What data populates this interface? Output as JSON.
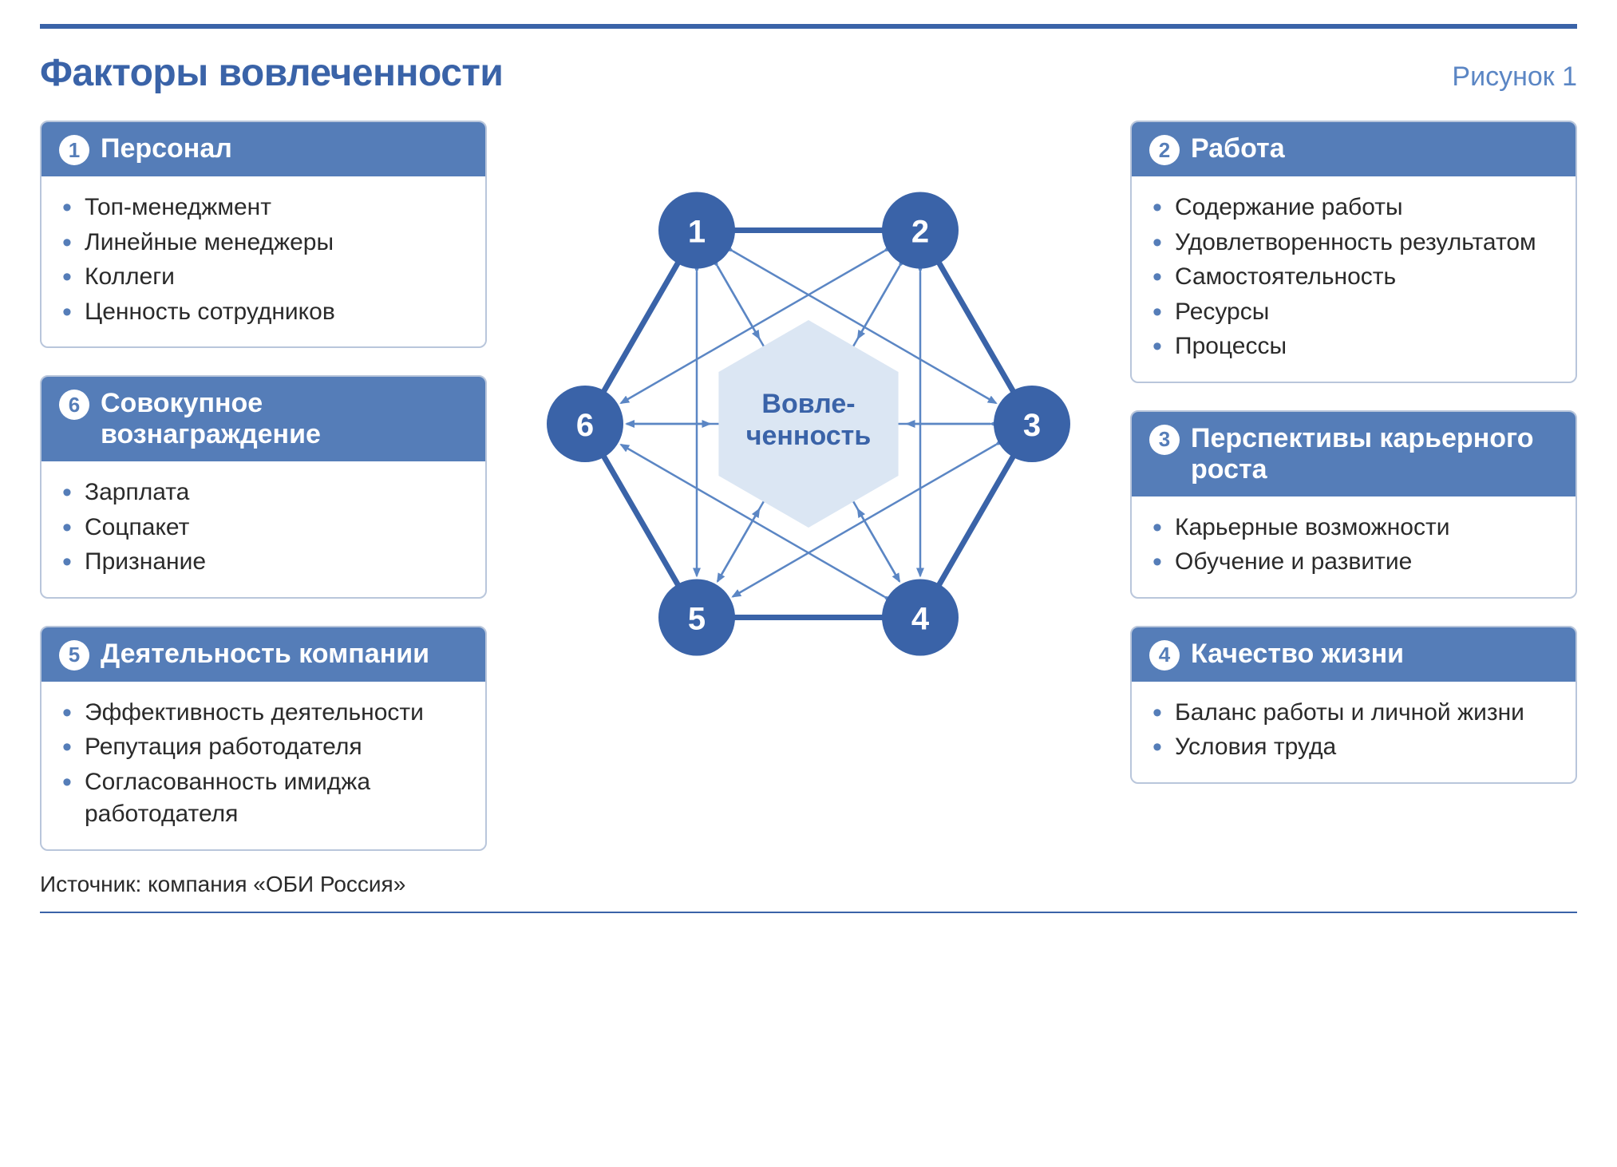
{
  "title": "Факторы вовлеченности",
  "figure_label": "Рисунок 1",
  "source": "Источник: компания «ОБИ Россия»",
  "colors": {
    "accent": "#3a63a8",
    "header_bg": "#557db8",
    "card_border": "#b9c6db",
    "core_fill": "#dbe6f3",
    "thin_edge": "#5b86c4",
    "text": "#2a2a2a",
    "bg": "#ffffff"
  },
  "typography": {
    "title_fontsize": 48,
    "figure_label_fontsize": 34,
    "card_title_fontsize": 34,
    "bullet_fontsize": 30,
    "source_fontsize": 28,
    "node_number_fontsize": 40,
    "core_label_fontsize": 34
  },
  "diagram": {
    "type": "network",
    "core_label_line1": "Вовле-",
    "core_label_line2": "ченность",
    "node_radius": 48,
    "hex_radius": 280,
    "core_hex_radius": 130,
    "outer_stroke_width": 7,
    "inner_stroke_width": 2.5,
    "arrow_size": 14,
    "nodes": [
      {
        "n": 1,
        "angle_deg": 120
      },
      {
        "n": 2,
        "angle_deg": 60
      },
      {
        "n": 3,
        "angle_deg": 0
      },
      {
        "n": 4,
        "angle_deg": -60
      },
      {
        "n": 5,
        "angle_deg": -120
      },
      {
        "n": 6,
        "angle_deg": 180
      }
    ]
  },
  "cards_left": [
    {
      "n": 1,
      "title": "Персонал",
      "items": [
        "Топ-менеджмент",
        "Линейные менеджеры",
        "Коллеги",
        "Ценность сотрудников"
      ]
    },
    {
      "n": 6,
      "title": "Совокупное вознаграждение",
      "items": [
        "Зарплата",
        "Соцпакет",
        "Признание"
      ]
    },
    {
      "n": 5,
      "title": "Деятельность компании",
      "items": [
        "Эффективность деятель­ности",
        "Репутация работодателя",
        "Согласованность ими­джа работодателя"
      ]
    }
  ],
  "cards_right": [
    {
      "n": 2,
      "title": "Работа",
      "items": [
        "Содержание работы",
        "Удовлетворенность результатом",
        "Самостоятельность",
        "Ресурсы",
        "Процессы"
      ]
    },
    {
      "n": 3,
      "title": "Перспективы карьерного роста",
      "items": [
        "Карьерные возможности",
        "Обучение и развитие"
      ]
    },
    {
      "n": 4,
      "title": "Качество жизни",
      "items": [
        "Баланс работы и личной жизни",
        "Условия труда"
      ]
    }
  ]
}
